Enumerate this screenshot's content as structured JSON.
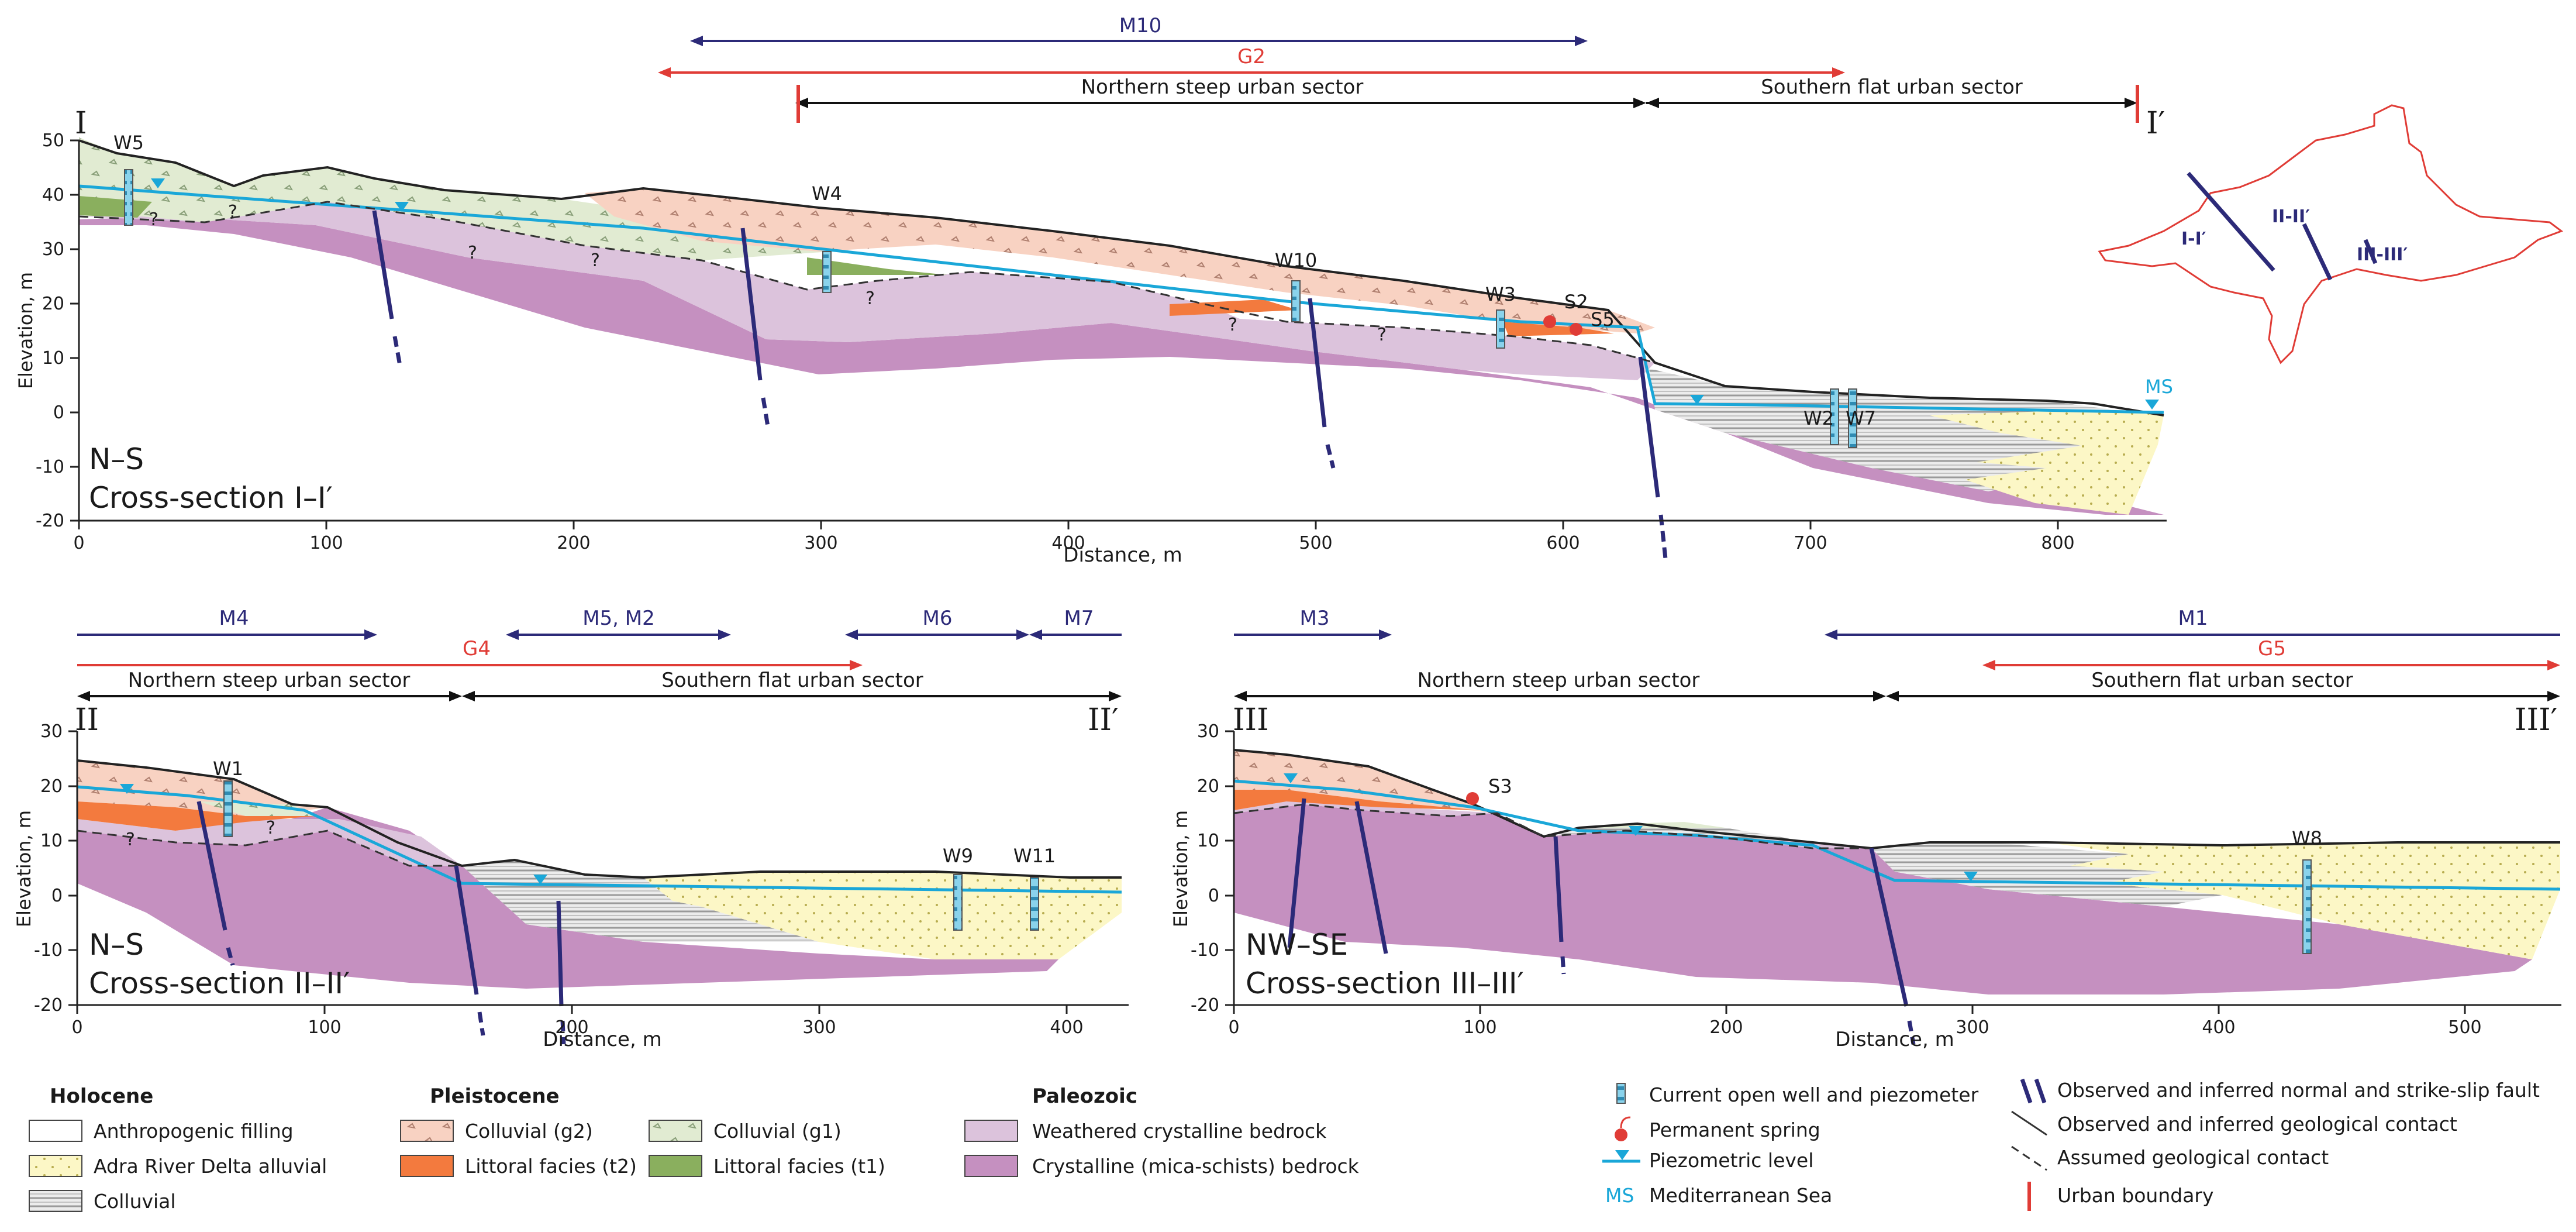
{
  "sections": {
    "s1": {
      "title": "Cross-section I–I′",
      "orientation": "N–S",
      "start_label": "I",
      "end_label": "I′",
      "x_axis_label": "Distance, m",
      "y_axis_label": "Elevation, m",
      "x_ticks": [
        "0",
        "100",
        "200",
        "300",
        "400",
        "500",
        "600",
        "700",
        "800"
      ],
      "y_ticks": [
        "50",
        "40",
        "30",
        "20",
        "10",
        "0",
        "-10",
        "-20"
      ],
      "xlim": [
        0,
        840
      ],
      "ylim": [
        -20,
        50
      ],
      "ranges": {
        "m10": "M10",
        "g2": "G2",
        "north": "Northern steep urban sector",
        "south": "Southern flat urban sector"
      },
      "wells": [
        "W5",
        "W4",
        "W10",
        "W3",
        "W2",
        "W7"
      ],
      "springs": [
        "S2",
        "S5"
      ],
      "sea": "MS"
    },
    "s2": {
      "title": "Cross-section II–II′",
      "orientation": "N–S",
      "start_label": "II",
      "end_label": "II′",
      "x_axis_label": "Distance, m",
      "y_axis_label": "Elevation, m",
      "x_ticks": [
        "0",
        "100",
        "200",
        "300",
        "400"
      ],
      "y_ticks": [
        "30",
        "20",
        "10",
        "0",
        "-10",
        "-20"
      ],
      "xlim": [
        0,
        425
      ],
      "ylim": [
        -20,
        30
      ],
      "ranges": {
        "m4": "M4",
        "m5m2": "M5, M2",
        "m6": "M6",
        "m7": "M7",
        "g4": "G4",
        "north": "Northern steep urban sector",
        "south": "Southern flat urban sector"
      },
      "wells": [
        "W1",
        "W9",
        "W11"
      ]
    },
    "s3": {
      "title": "Cross-section III–III′",
      "orientation": "NW–SE",
      "start_label": "III",
      "end_label": "III′",
      "x_axis_label": "Distance, m",
      "y_axis_label": "Elevation, m",
      "x_ticks": [
        "0",
        "100",
        "200",
        "300",
        "400",
        "500"
      ],
      "y_ticks": [
        "30",
        "20",
        "10",
        "0",
        "-10",
        "-20"
      ],
      "xlim": [
        0,
        540
      ],
      "ylim": [
        -20,
        30
      ],
      "ranges": {
        "m3": "M3",
        "m1": "M1",
        "g5": "G5",
        "north": "Northern steep urban sector",
        "south": "Southern flat urban sector"
      },
      "wells": [
        "W8"
      ],
      "springs": [
        "S3"
      ]
    }
  },
  "inset_map": {
    "labels": [
      "I-I′",
      "II-II′",
      "III-III′"
    ]
  },
  "legend": {
    "holocene": {
      "title": "Holocene",
      "items": [
        "Anthropogenic filling",
        "Adra River Delta alluvial",
        "Colluvial"
      ]
    },
    "pleistocene": {
      "title": "Pleistocene",
      "items": [
        "Colluvial (g2)",
        "Littoral facies (t2)",
        "Colluvial (g1)",
        "Littoral facies (t1)"
      ]
    },
    "paleozoic": {
      "title": "Paleozoic",
      "items": [
        "Weathered crystalline bedrock",
        "Crystalline (mica-schists) bedrock"
      ]
    },
    "symbols": {
      "well": "Current open well and piezometer",
      "spring": "Permanent spring",
      "piezo": "Piezometric level",
      "ms_abbr": "MS",
      "ms": "Mediterranean Sea",
      "fault": "Observed and inferred normal and strike-slip fault",
      "contact": "Observed and inferred geological contact",
      "assumed": "Assumed geological contact",
      "urban": "Urban boundary"
    }
  },
  "colors": {
    "paleozoic": "#c590c0",
    "weathered": "#dcc3dc",
    "colluvial_g2": "#f8d2c2",
    "littoral_t2": "#f37a3e",
    "colluvial_g1": "#e1ebd2",
    "littoral_t1": "#8aaf5e",
    "alluvial": "#fcf7c6",
    "piezometric": "#1aa7d8",
    "fault": "#2c2a78",
    "urban_red": "#e03c36",
    "m_arrow": "#2c2a78",
    "g_arrow": "#e03c36"
  }
}
